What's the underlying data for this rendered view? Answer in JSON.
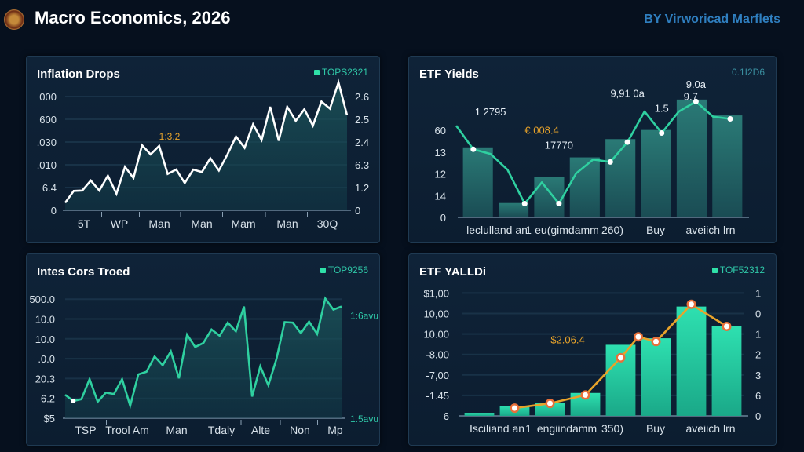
{
  "header": {
    "title": "Macro Economics, 2026",
    "byline": "BY Virworicad Marflets",
    "logo_icon": "emblem-icon"
  },
  "colors": {
    "background": "#06101e",
    "panel": "#0f2338",
    "teal": "#2fd0a0",
    "orange": "#e8a32a",
    "byline": "#2f7fc0"
  },
  "panels": [
    {
      "title": "Inflation Drops",
      "badge": "TOPS2321"
    },
    {
      "title": "ETF Yields",
      "badge": "0.1I2D6"
    },
    {
      "title": "Intes Cors Troed",
      "badge": "TOP9256"
    },
    {
      "title": "ETF YALLDi",
      "badge": "TOF52312"
    }
  ],
  "chart_data": [
    {
      "type": "area",
      "title": "Inflation Drops",
      "ylim": [
        0,
        5.8
      ],
      "grid": true,
      "left_ticks": [
        {
          "v": 5,
          "label": "000"
        },
        {
          "v": 4,
          "label": "600"
        },
        {
          "v": 3,
          "label": ".030"
        },
        {
          "v": 2,
          "label": ".010"
        },
        {
          "v": 1,
          "label": "6.4"
        },
        {
          "v": 0,
          "label": "0"
        }
      ],
      "right_ticks": [
        {
          "v": 5,
          "label": "2.6"
        },
        {
          "v": 4,
          "label": "2.5"
        },
        {
          "v": 3,
          "label": "2.4"
        },
        {
          "v": 2,
          "label": "6.3"
        },
        {
          "v": 1,
          "label": "1.2"
        },
        {
          "v": 0,
          "label": "0"
        }
      ],
      "x_labels": [
        "5T",
        "WP",
        "Man",
        "Man",
        "Mam",
        "Man",
        "30Q"
      ],
      "values": [
        0.33,
        0.85,
        0.87,
        1.31,
        0.87,
        1.52,
        0.73,
        1.91,
        1.42,
        2.86,
        2.46,
        2.83,
        1.6,
        1.79,
        1.2,
        1.79,
        1.68,
        2.29,
        1.75,
        2.46,
        3.24,
        2.75,
        3.78,
        3.09,
        4.55,
        3.06,
        4.55,
        3.93,
        4.44,
        3.72,
        4.78,
        4.47,
        5.62,
        4.18
      ],
      "line_color": "#ffffff",
      "annotations": [
        {
          "text": "1:3.2",
          "color": "#e8a32a",
          "x_index": 11,
          "v": 3.1
        }
      ]
    },
    {
      "type": "bar",
      "title": "ETF Yields",
      "ylim": [
        0,
        6
      ],
      "grid": false,
      "left_ticks": [
        {
          "v": 4,
          "label": "60"
        },
        {
          "v": 3,
          "label": "13"
        },
        {
          "v": 2,
          "label": "12"
        },
        {
          "v": 1,
          "label": "14"
        },
        {
          "v": 0,
          "label": "0"
        }
      ],
      "right_ticks": [],
      "x_labels": [
        "leclulland an",
        "1",
        "eu(gimdamm",
        "260)",
        "Buy",
        "aveiich lrn"
      ],
      "values": [
        3.22,
        0.66,
        1.87,
        2.76,
        3.6,
        4.02,
        5.42,
        4.69
      ],
      "line": {
        "values": [
          4.22,
          3.13,
          2.92,
          2.19,
          0.63,
          1.61,
          0.63,
          2.02,
          2.66,
          2.55,
          3.46,
          4.87,
          3.88,
          4.87,
          5.33,
          4.63,
          4.53
        ],
        "markers": [
          1,
          4,
          6,
          9,
          10,
          12,
          14,
          16
        ],
        "color": "#2fd0a0"
      },
      "bar_color": "#1d5a5e",
      "annotations": [
        {
          "text": "1 2795",
          "color": "#e6eef5",
          "x_index": 2,
          "v": 4.7
        },
        {
          "text": "€.008.4",
          "color": "#e8a32a",
          "x_index": 5,
          "v": 3.85
        },
        {
          "text": "17770",
          "color": "#e6eef5",
          "x_index": 6,
          "v": 3.15
        },
        {
          "text": "9,91 0a",
          "color": "#e6eef5",
          "x_index": 10,
          "v": 5.55
        },
        {
          "text": "1.5",
          "color": "#e6eef5",
          "x_index": 12,
          "v": 4.85
        },
        {
          "text": "9.7",
          "color": "#e6eef5",
          "x_index": 13.7,
          "v": 5.4
        },
        {
          "text": "9.0a",
          "color": "#e6eef5",
          "x_index": 14,
          "v": 5.95
        }
      ]
    },
    {
      "type": "area",
      "title": "Intes Cors Troed",
      "ylim": [
        0,
        6.3
      ],
      "grid": true,
      "left_ticks": [
        {
          "v": 6,
          "label": "500.0"
        },
        {
          "v": 5,
          "label": "10.0"
        },
        {
          "v": 4,
          "label": "10.0"
        },
        {
          "v": 3,
          "label": ".0.0"
        },
        {
          "v": 2,
          "label": "20.3"
        },
        {
          "v": 1,
          "label": "6.2"
        },
        {
          "v": 0,
          "label": "$5"
        }
      ],
      "right_ticks": [
        {
          "v": 5.2,
          "label": "1:6avu"
        },
        {
          "v": 0,
          "label": "1.5avu"
        }
      ],
      "x_labels": [
        "TSP",
        "Trool Am",
        "Man",
        "Tdaly",
        "Alte",
        "Non",
        "Mp"
      ],
      "values": [
        1.18,
        0.87,
        0.96,
        1.97,
        0.83,
        1.29,
        1.22,
        1.97,
        0.63,
        2.21,
        2.34,
        3.11,
        2.67,
        3.37,
        2.01,
        4.21,
        3.59,
        3.79,
        4.47,
        4.16,
        4.82,
        4.38,
        5.63,
        1.09,
        2.61,
        1.66,
        3.0,
        4.84,
        4.82,
        4.29,
        4.87,
        4.25,
        6.03,
        5.47,
        5.63
      ],
      "line_color": "#2fd0a0",
      "markers": [
        1
      ]
    },
    {
      "type": "bar",
      "title": "ETF YALLDi",
      "ylim": [
        0,
        6
      ],
      "grid": true,
      "left_ticks": [
        {
          "v": 6,
          "label": "$1,00"
        },
        {
          "v": 5,
          "label": "10,00"
        },
        {
          "v": 4,
          "label": "10.00"
        },
        {
          "v": 3,
          "label": "-8.00"
        },
        {
          "v": 2,
          "label": "-7,00"
        },
        {
          "v": 1,
          "label": "-1.45"
        },
        {
          "v": 0,
          "label": "6"
        }
      ],
      "right_ticks": [
        {
          "v": 6,
          "label": "1"
        },
        {
          "v": 5,
          "label": "0"
        },
        {
          "v": 4,
          "label": "1"
        },
        {
          "v": 3,
          "label": "2"
        },
        {
          "v": 2,
          "label": "3"
        },
        {
          "v": 1,
          "label": "6"
        },
        {
          "v": 0,
          "label": "0"
        }
      ],
      "x_labels": [
        "Isciliand an",
        "1",
        "engiindamm",
        "350)",
        "Buy",
        "aveiich lrn"
      ],
      "values": [
        0.15,
        0.49,
        0.64,
        1.12,
        3.47,
        3.79,
        5.34,
        4.37
      ],
      "line": {
        "x": [
          1,
          2,
          3,
          4,
          4.5,
          5,
          6,
          7
        ],
        "values": [
          0.38,
          0.61,
          1.02,
          2.84,
          3.86,
          3.63,
          5.45,
          4.37
        ],
        "color": "#e8a32a"
      },
      "bar_color": "#26c9a0",
      "annotations": [
        {
          "text": "$2.06.4",
          "color": "#e8a32a",
          "x_index": 2.5,
          "v": 3.55
        }
      ]
    }
  ]
}
